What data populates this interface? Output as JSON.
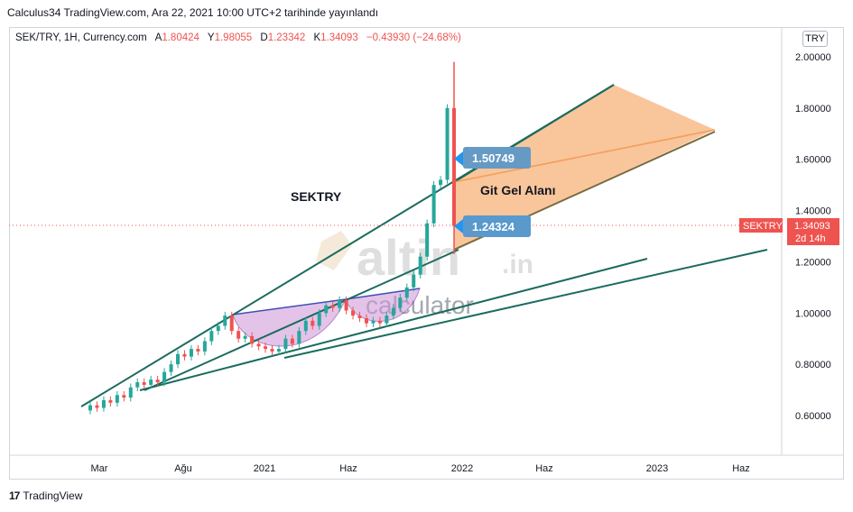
{
  "header": {
    "publish_text": "Calculus34 TradingView.com, Ara 22, 2021 10:00 UTC+2 tarihinde yayınlandı"
  },
  "legend": {
    "symbol": "SEK/TRY, 1H, Currency.com",
    "open_label": "A",
    "open_value": "1.80424",
    "high_label": "Y",
    "high_value": "1.98055",
    "low_label": "D",
    "low_value": "1.23342",
    "close_label": "K",
    "close_value": "1.34093",
    "change": "−0.43930 (−24.68%)"
  },
  "currency_button": "TRY",
  "price_tag": {
    "symbol": "SEKTRY",
    "price": "1.34093",
    "countdown": "2d 14h"
  },
  "annotations": {
    "title": "SEKTRY",
    "zone_label": "Git Gel Alanı",
    "upper_marker": "1.50749",
    "lower_marker": "1.24324"
  },
  "watermark": {
    "brand": "altin",
    "tld": ".in",
    "sub": "calculator"
  },
  "footer": {
    "logo": "17",
    "brand": "TradingView"
  },
  "colors": {
    "up": "#26a69a",
    "down": "#ef5350",
    "trend": "#1b6b5e",
    "zone": "#f7b27a",
    "cup": "#ce93d8",
    "marker": "#2196f3",
    "tag": "#ef5350"
  },
  "chart_data": {
    "type": "candlestick",
    "x_ticks": [
      "Mar",
      "Ağu",
      "2021",
      "Haz",
      "2022",
      "Haz",
      "2023",
      "Haz"
    ],
    "y_ticks": [
      "2.00000",
      "1.80000",
      "1.60000",
      "1.40000",
      "1.20000",
      "1.00000",
      "0.80000",
      "0.60000"
    ],
    "ylim": [
      0.45,
      2.08
    ],
    "last_price": 1.34093,
    "series": [
      {
        "name": "SEK/TRY",
        "points": [
          [
            0.62,
            0.64
          ],
          [
            0.64,
            0.63
          ],
          [
            0.63,
            0.66
          ],
          [
            0.66,
            0.65
          ],
          [
            0.65,
            0.68
          ],
          [
            0.68,
            0.67
          ],
          [
            0.67,
            0.71
          ],
          [
            0.71,
            0.73
          ],
          [
            0.73,
            0.72
          ],
          [
            0.72,
            0.74
          ],
          [
            0.74,
            0.73
          ],
          [
            0.73,
            0.77
          ],
          [
            0.77,
            0.8
          ],
          [
            0.8,
            0.84
          ],
          [
            0.84,
            0.83
          ],
          [
            0.83,
            0.86
          ],
          [
            0.86,
            0.85
          ],
          [
            0.85,
            0.89
          ],
          [
            0.89,
            0.93
          ],
          [
            0.93,
            0.95
          ],
          [
            0.95,
            0.99
          ],
          [
            0.99,
            0.93
          ],
          [
            0.93,
            0.9
          ],
          [
            0.9,
            0.91
          ],
          [
            0.91,
            0.88
          ],
          [
            0.88,
            0.87
          ],
          [
            0.87,
            0.86
          ],
          [
            0.86,
            0.85
          ],
          [
            0.85,
            0.86
          ],
          [
            0.86,
            0.9
          ],
          [
            0.9,
            0.88
          ],
          [
            0.88,
            0.93
          ],
          [
            0.93,
            0.97
          ],
          [
            0.97,
            0.95
          ],
          [
            0.95,
            1.0
          ],
          [
            1.0,
            1.03
          ],
          [
            1.03,
            1.02
          ],
          [
            1.02,
            1.05
          ],
          [
            1.05,
            1.01
          ],
          [
            1.01,
            0.99
          ],
          [
            0.99,
            0.98
          ],
          [
            0.98,
            0.96
          ],
          [
            0.96,
            0.97
          ],
          [
            0.97,
            0.96
          ],
          [
            0.96,
            0.99
          ],
          [
            0.99,
            1.02
          ],
          [
            1.02,
            1.06
          ],
          [
            1.06,
            1.1
          ],
          [
            1.1,
            1.15
          ],
          [
            1.15,
            1.22
          ],
          [
            1.22,
            1.35
          ],
          [
            1.35,
            1.5
          ],
          [
            1.5,
            1.52
          ],
          [
            1.52,
            1.8
          ],
          [
            1.8,
            1.34
          ]
        ]
      }
    ],
    "trendlines": "wedge channel and two rising support lines; shaded target zone labelled Git Gel Alanı"
  }
}
